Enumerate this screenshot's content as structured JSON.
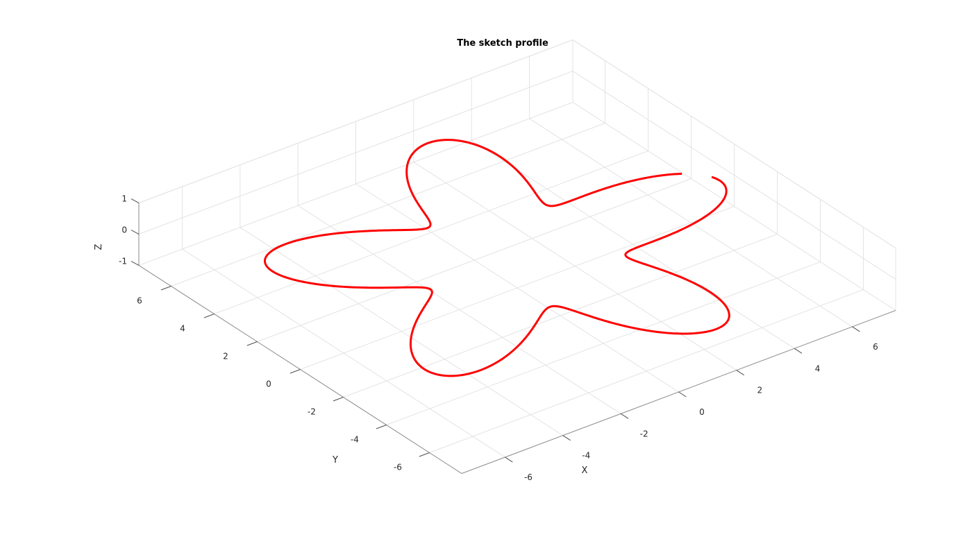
{
  "chart_data": {
    "type": "line",
    "title": "The sketch profile",
    "xlabel": "X",
    "ylabel": "Y",
    "zlabel": "Z",
    "xlim": [
      -7.5,
      7.5
    ],
    "ylim": [
      -7.5,
      7.5
    ],
    "zlim": [
      -1,
      1
    ],
    "xticks": [
      -6,
      -4,
      -2,
      0,
      2,
      4,
      6
    ],
    "yticks": [
      -6,
      -4,
      -2,
      0,
      2,
      4,
      6
    ],
    "zticks": [
      -1,
      0,
      1
    ],
    "grid": true,
    "series": [
      {
        "color": "#ff0000",
        "curve": "polar rose profile in plane z = 0",
        "r_base": 5,
        "r_amplitude": 2,
        "lobes": 5,
        "theta_gap_deg": [
          2.5,
          8.5
        ]
      }
    ]
  }
}
